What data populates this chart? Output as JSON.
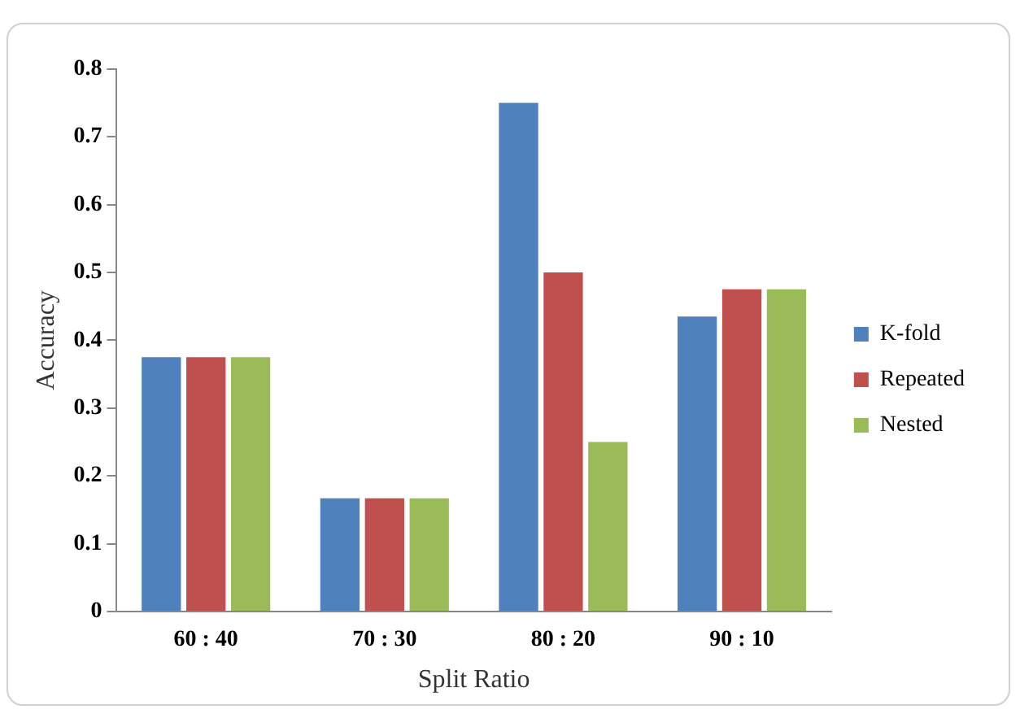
{
  "chart_data": {
    "type": "bar",
    "xlabel": "Split Ratio",
    "ylabel": "Accuracy",
    "categories": [
      "60 : 40",
      "70 : 30",
      "80 : 20",
      "90 : 10"
    ],
    "series": [
      {
        "name": "K-fold",
        "color": "#4f81bd",
        "values": [
          0.375,
          0.167,
          0.75,
          0.435
        ]
      },
      {
        "name": "Repeated",
        "color": "#c0504d",
        "values": [
          0.375,
          0.167,
          0.5,
          0.475
        ]
      },
      {
        "name": "Nested",
        "color": "#9bbb59",
        "values": [
          0.375,
          0.167,
          0.25,
          0.475
        ]
      }
    ],
    "ylim": [
      0,
      0.8
    ],
    "yticks": [
      0,
      0.1,
      0.2,
      0.3,
      0.4,
      0.5,
      0.6,
      0.7,
      0.8
    ],
    "grid": false,
    "legend": "right"
  }
}
